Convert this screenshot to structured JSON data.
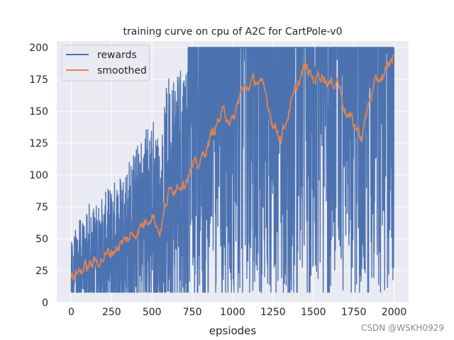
{
  "chart_data": {
    "type": "line",
    "title": "training curve on cpu of A2C for CartPole-v0",
    "xlabel": "epsiodes",
    "ylabel": "",
    "xlim": [
      -90,
      2090
    ],
    "ylim": [
      0,
      205
    ],
    "xticks": [
      0,
      250,
      500,
      750,
      1000,
      1250,
      1500,
      1750,
      2000
    ],
    "yticks": [
      0,
      25,
      50,
      75,
      100,
      125,
      150,
      175,
      200
    ],
    "grid": true,
    "legend_position": "upper left",
    "series": [
      {
        "name": "rewards",
        "color": "#4c72b0",
        "generator": "noisy envelope around the smoothed trend, values clipped to [8, 200]"
      },
      {
        "name": "smoothed",
        "color": "#dd8452",
        "x": [
          0,
          50,
          100,
          150,
          200,
          250,
          300,
          350,
          400,
          450,
          500,
          550,
          600,
          650,
          700,
          750,
          800,
          850,
          900,
          950,
          1000,
          1050,
          1100,
          1150,
          1200,
          1250,
          1300,
          1350,
          1400,
          1450,
          1500,
          1550,
          1600,
          1650,
          1700,
          1750,
          1800,
          1850,
          1900,
          1950,
          2000
        ],
        "values": [
          20,
          25,
          28,
          32,
          35,
          40,
          45,
          50,
          55,
          62,
          70,
          55,
          85,
          92,
          95,
          105,
          110,
          125,
          140,
          150,
          140,
          165,
          170,
          175,
          165,
          140,
          130,
          150,
          170,
          185,
          175,
          180,
          170,
          175,
          150,
          140,
          130,
          160,
          175,
          180,
          195
        ]
      }
    ],
    "watermark": "CSDN @WSKH0929"
  }
}
